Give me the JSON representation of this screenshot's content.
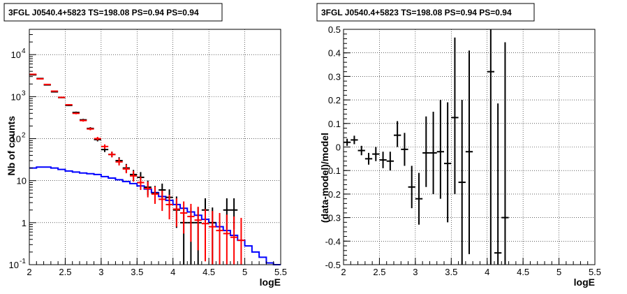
{
  "chart_data": [
    {
      "type": "histogram",
      "title": "3FGL J0540.4+5823 TS=198.08 PS=0.94 PS=0.94",
      "xlabel": "logE",
      "ylabel": "Nb of counts",
      "yscale": "log",
      "xlim": [
        2,
        5.5
      ],
      "ylim": [
        0.1,
        40000
      ],
      "xticks": [
        "2",
        "2.5",
        "3",
        "3.5",
        "4",
        "4.5",
        "5",
        "5.5"
      ],
      "yticks": [
        {
          "v": 0.1,
          "label": "10",
          "exp": "-1"
        },
        {
          "v": 1,
          "label": "1",
          "exp": ""
        },
        {
          "v": 10,
          "label": "10",
          "exp": ""
        },
        {
          "v": 100,
          "label": "10",
          "exp": "2"
        },
        {
          "v": 1000,
          "label": "10",
          "exp": "3"
        },
        {
          "v": 10000,
          "label": "10",
          "exp": "4"
        }
      ],
      "grid": true,
      "bin_width": 0.1,
      "data_color": "#000000",
      "model_points_color": "#ff0000",
      "model_line_color": "#0000ff",
      "data": [
        {
          "x": 2.05,
          "y": 3300,
          "lo": 3240,
          "hi": 3360
        },
        {
          "x": 2.15,
          "y": 2700,
          "lo": 2650,
          "hi": 2750
        },
        {
          "x": 2.25,
          "y": 1900,
          "lo": 1860,
          "hi": 1940
        },
        {
          "x": 2.35,
          "y": 1300,
          "lo": 1265,
          "hi": 1335
        },
        {
          "x": 2.45,
          "y": 950,
          "lo": 920,
          "hi": 980
        },
        {
          "x": 2.55,
          "y": 620,
          "lo": 595,
          "hi": 645
        },
        {
          "x": 2.65,
          "y": 420,
          "lo": 400,
          "hi": 440
        },
        {
          "x": 2.75,
          "y": 280,
          "lo": 264,
          "hi": 296
        },
        {
          "x": 2.85,
          "y": 175,
          "lo": 162,
          "hi": 188
        },
        {
          "x": 2.95,
          "y": 95,
          "lo": 86,
          "hi": 105
        },
        {
          "x": 3.05,
          "y": 55,
          "lo": 48,
          "hi": 63
        },
        {
          "x": 3.15,
          "y": 42,
          "lo": 36,
          "hi": 49
        },
        {
          "x": 3.25,
          "y": 30,
          "lo": 25,
          "hi": 36
        },
        {
          "x": 3.35,
          "y": 20,
          "lo": 16,
          "hi": 25
        },
        {
          "x": 3.45,
          "y": 14,
          "lo": 10.5,
          "hi": 18
        },
        {
          "x": 3.55,
          "y": 12,
          "lo": 9,
          "hi": 16
        },
        {
          "x": 3.65,
          "y": 7,
          "lo": 4.5,
          "hi": 10
        },
        {
          "x": 3.75,
          "y": 5,
          "lo": 3,
          "hi": 7.5
        },
        {
          "x": 3.85,
          "y": 6,
          "lo": 3.8,
          "hi": 8.5
        },
        {
          "x": 3.95,
          "y": 4,
          "lo": 2.2,
          "hi": 6.2
        },
        {
          "x": 4.05,
          "y": 2,
          "lo": 0.75,
          "hi": 4.2
        },
        {
          "x": 4.15,
          "y": 1,
          "lo": 0.1,
          "hi": 2.3
        },
        {
          "x": 4.25,
          "y": 1,
          "lo": 0.1,
          "hi": 2.3
        },
        {
          "x": 4.35,
          "y": 1,
          "lo": 0.1,
          "hi": 2.3
        },
        {
          "x": 4.45,
          "y": 2,
          "lo": 0.7,
          "hi": 3.8
        },
        {
          "x": 4.55,
          "y": 1,
          "lo": 0.1,
          "hi": 2.3
        },
        {
          "x": 4.75,
          "y": 2,
          "lo": 0.7,
          "hi": 3.8
        },
        {
          "x": 4.85,
          "y": 2,
          "lo": 0.7,
          "hi": 3.8
        }
      ],
      "model_points": [
        {
          "x": 2.05,
          "y": 3400,
          "lo": 3340,
          "hi": 3460
        },
        {
          "x": 2.15,
          "y": 2650,
          "lo": 2600,
          "hi": 2700
        },
        {
          "x": 2.25,
          "y": 1950,
          "lo": 1910,
          "hi": 1990
        },
        {
          "x": 2.35,
          "y": 1350,
          "lo": 1315,
          "hi": 1385
        },
        {
          "x": 2.45,
          "y": 960,
          "lo": 930,
          "hi": 990
        },
        {
          "x": 2.55,
          "y": 640,
          "lo": 615,
          "hi": 665
        },
        {
          "x": 2.65,
          "y": 400,
          "lo": 380,
          "hi": 420
        },
        {
          "x": 2.75,
          "y": 270,
          "lo": 254,
          "hi": 286
        },
        {
          "x": 2.85,
          "y": 170,
          "lo": 158,
          "hi": 183
        },
        {
          "x": 2.95,
          "y": 100,
          "lo": 91,
          "hi": 110
        },
        {
          "x": 3.05,
          "y": 65,
          "lo": 57,
          "hi": 73
        },
        {
          "x": 3.15,
          "y": 42,
          "lo": 36,
          "hi": 49
        },
        {
          "x": 3.25,
          "y": 28,
          "lo": 23,
          "hi": 34
        },
        {
          "x": 3.35,
          "y": 19,
          "lo": 15,
          "hi": 24
        },
        {
          "x": 3.45,
          "y": 13,
          "lo": 9.5,
          "hi": 17
        },
        {
          "x": 3.55,
          "y": 9,
          "lo": 6,
          "hi": 12.5
        },
        {
          "x": 3.65,
          "y": 6.5,
          "lo": 4,
          "hi": 9.5
        },
        {
          "x": 3.75,
          "y": 4.8,
          "lo": 2.8,
          "hi": 7.2
        },
        {
          "x": 3.85,
          "y": 3.6,
          "lo": 1.9,
          "hi": 5.8
        },
        {
          "x": 3.95,
          "y": 2.7,
          "lo": 1.2,
          "hi": 4.6
        },
        {
          "x": 4.05,
          "y": 2.1,
          "lo": 0.8,
          "hi": 3.8
        },
        {
          "x": 4.15,
          "y": 1.7,
          "lo": 0.55,
          "hi": 3.2
        },
        {
          "x": 4.25,
          "y": 1.4,
          "lo": 0.35,
          "hi": 2.8
        },
        {
          "x": 4.35,
          "y": 1.15,
          "lo": 0.22,
          "hi": 2.4
        },
        {
          "x": 4.45,
          "y": 0.95,
          "lo": 0.12,
          "hi": 2.1
        },
        {
          "x": 4.55,
          "y": 0.8,
          "lo": 0.1,
          "hi": 1.9
        },
        {
          "x": 4.65,
          "y": 0.65,
          "lo": 0.1,
          "hi": 1.7
        },
        {
          "x": 4.75,
          "y": 0.55,
          "lo": 0.1,
          "hi": 1.55
        },
        {
          "x": 4.85,
          "y": 0.45,
          "lo": 0.1,
          "hi": 1.4
        },
        {
          "x": 4.95,
          "y": 0.38,
          "lo": 0.1,
          "hi": 1.3
        }
      ],
      "model_line": [
        20,
        21,
        21,
        20,
        18.5,
        17,
        16,
        15.2,
        14.6,
        14,
        12.5,
        11.5,
        10.5,
        9.5,
        8.5,
        7.5,
        6.3,
        5.2,
        4.2,
        3.4,
        2.7,
        2.2,
        1.8,
        1.5,
        1.2,
        1.0,
        0.8,
        0.65,
        0.5,
        0.38,
        0.28,
        0.2,
        0.15,
        0.11,
        0.1
      ],
      "model_line_x0": 2.0
    },
    {
      "type": "scatter",
      "title": "3FGL J0540.4+5823 TS=198.08 PS=0.94 PS=0.94",
      "xlabel": "logE",
      "ylabel": "(data-model)/model",
      "xlim": [
        2,
        5.5
      ],
      "ylim": [
        -0.5,
        0.5
      ],
      "xticks": [
        "2",
        "2.5",
        "3",
        "3.5",
        "4",
        "4.5",
        "5",
        "5.5"
      ],
      "yticks": [
        "-0.5",
        "-0.4",
        "-0.3",
        "-0.2",
        "-0.1",
        "0",
        "0.1",
        "0.2",
        "0.3",
        "0.4",
        "0.5"
      ],
      "grid": true,
      "bin_width": 0.1,
      "color": "#000000",
      "points": [
        {
          "x": 2.05,
          "y": 0.02,
          "lo": 0.005,
          "hi": 0.035
        },
        {
          "x": 2.15,
          "y": 0.03,
          "lo": 0.012,
          "hi": 0.048
        },
        {
          "x": 2.25,
          "y": -0.015,
          "lo": -0.035,
          "hi": 0.005
        },
        {
          "x": 2.35,
          "y": -0.05,
          "lo": -0.075,
          "hi": -0.025
        },
        {
          "x": 2.45,
          "y": -0.03,
          "lo": -0.06,
          "hi": 0.0
        },
        {
          "x": 2.55,
          "y": -0.055,
          "lo": -0.09,
          "hi": -0.02
        },
        {
          "x": 2.65,
          "y": -0.06,
          "lo": -0.1,
          "hi": -0.02
        },
        {
          "x": 2.75,
          "y": 0.05,
          "lo": 0.0,
          "hi": 0.11
        },
        {
          "x": 2.85,
          "y": -0.01,
          "lo": -0.08,
          "hi": 0.06
        },
        {
          "x": 2.95,
          "y": -0.17,
          "lo": -0.26,
          "hi": -0.08
        },
        {
          "x": 3.05,
          "y": -0.22,
          "lo": -0.33,
          "hi": -0.11
        },
        {
          "x": 3.15,
          "y": -0.025,
          "lo": -0.17,
          "hi": 0.13
        },
        {
          "x": 3.25,
          "y": -0.025,
          "lo": -0.2,
          "hi": 0.15
        },
        {
          "x": 3.35,
          "y": -0.02,
          "lo": -0.22,
          "hi": 0.2
        },
        {
          "x": 3.45,
          "y": -0.07,
          "lo": -0.32,
          "hi": 0.19
        },
        {
          "x": 3.55,
          "y": 0.125,
          "lo": -0.2,
          "hi": 0.465
        },
        {
          "x": 3.65,
          "y": -0.15,
          "lo": -0.5,
          "hi": 0.2
        },
        {
          "x": 3.75,
          "y": -0.02,
          "lo": -0.455,
          "hi": 0.41
        },
        {
          "x": 4.05,
          "y": 0.32,
          "lo": -0.5,
          "hi": 0.5
        },
        {
          "x": 4.15,
          "y": -0.45,
          "lo": -0.5,
          "hi": 0.185
        },
        {
          "x": 4.25,
          "y": -0.3,
          "lo": -0.5,
          "hi": 0.445
        }
      ]
    }
  ]
}
